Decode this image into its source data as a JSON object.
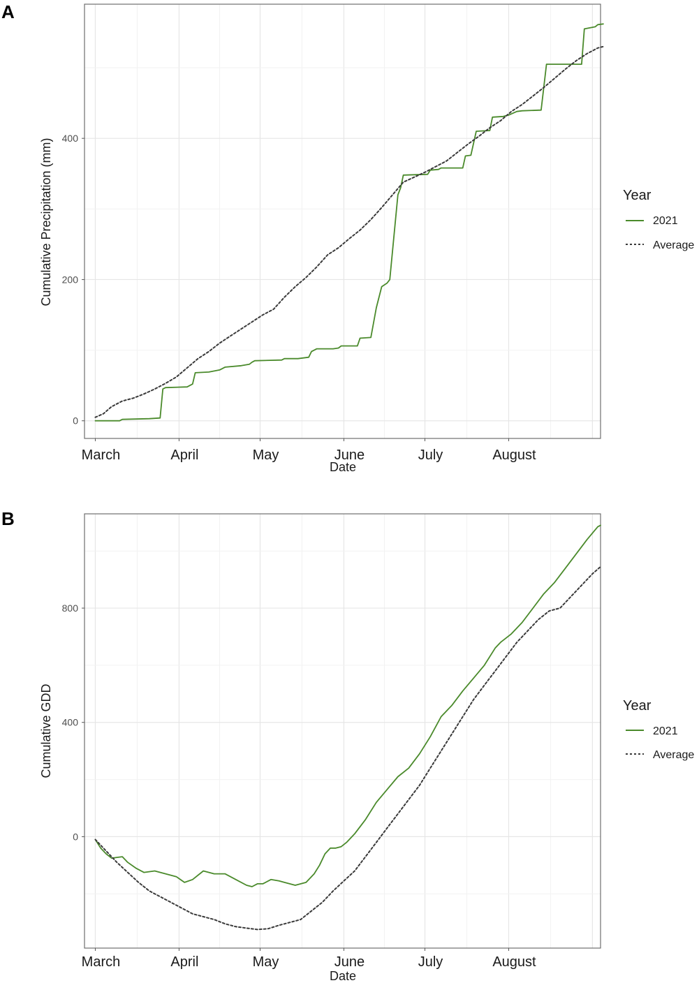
{
  "chart_data": [
    {
      "panel": "A",
      "type": "line",
      "xlabel": "Date",
      "ylabel": "Cumulative Precipitation (mm)",
      "x_unit": "day of year",
      "xlim": [
        56,
        247
      ],
      "ylim": [
        -25,
        590
      ],
      "x_ticks": [
        {
          "label": "March",
          "x": 60
        },
        {
          "label": "April",
          "x": 91
        },
        {
          "label": "May",
          "x": 121
        },
        {
          "label": "June",
          "x": 152
        },
        {
          "label": "July",
          "x": 182
        },
        {
          "label": "August",
          "x": 213
        }
      ],
      "y_ticks": [
        0,
        200,
        400
      ],
      "legend": {
        "title": "Year",
        "position": "right",
        "entries": [
          "2021",
          "Average"
        ]
      },
      "series": [
        {
          "name": "2021",
          "color": "#4a8a2b",
          "dash": "solid",
          "points": [
            [
              60,
              0
            ],
            [
              61,
              0
            ],
            [
              69,
              0
            ],
            [
              70,
              2
            ],
            [
              80,
              3
            ],
            [
              84,
              4
            ],
            [
              85,
              45
            ],
            [
              86,
              47
            ],
            [
              94,
              48
            ],
            [
              96,
              52
            ],
            [
              97,
              68
            ],
            [
              102,
              69
            ],
            [
              106,
              72
            ],
            [
              108,
              76
            ],
            [
              114,
              78
            ],
            [
              117,
              80
            ],
            [
              118,
              83
            ],
            [
              119,
              85
            ],
            [
              129,
              86
            ],
            [
              130,
              88
            ],
            [
              135,
              88
            ],
            [
              139,
              90
            ],
            [
              140,
              98
            ],
            [
              142,
              102
            ],
            [
              148,
              102
            ],
            [
              150,
              103
            ],
            [
              151,
              106
            ],
            [
              157,
              106
            ],
            [
              158,
              117
            ],
            [
              162,
              118
            ],
            [
              164,
              160
            ],
            [
              166,
              190
            ],
            [
              168,
              195
            ],
            [
              169,
              200
            ],
            [
              172,
              320
            ],
            [
              173,
              330
            ],
            [
              174,
              348
            ],
            [
              183,
              349
            ],
            [
              184,
              355
            ],
            [
              187,
              356
            ],
            [
              188,
              358
            ],
            [
              196,
              358
            ],
            [
              197,
              375
            ],
            [
              199,
              376
            ],
            [
              201,
              410
            ],
            [
              206,
              411
            ],
            [
              207,
              430
            ],
            [
              211,
              431
            ],
            [
              213,
              433
            ],
            [
              216,
              438
            ],
            [
              218,
              439
            ],
            [
              225,
              440
            ],
            [
              227,
              505
            ],
            [
              240,
              505
            ],
            [
              241,
              555
            ],
            [
              245,
              558
            ],
            [
              246,
              561
            ],
            [
              248,
              562
            ]
          ]
        },
        {
          "name": "Average",
          "color": "#3a3a3a",
          "dash": "dotted",
          "points": [
            [
              60,
              5
            ],
            [
              63,
              10
            ],
            [
              66,
              20
            ],
            [
              70,
              28
            ],
            [
              74,
              32
            ],
            [
              78,
              38
            ],
            [
              82,
              45
            ],
            [
              86,
              53
            ],
            [
              90,
              62
            ],
            [
              94,
              75
            ],
            [
              98,
              88
            ],
            [
              102,
              98
            ],
            [
              106,
              110
            ],
            [
              110,
              120
            ],
            [
              114,
              130
            ],
            [
              118,
              140
            ],
            [
              122,
              150
            ],
            [
              126,
              158
            ],
            [
              130,
              175
            ],
            [
              134,
              190
            ],
            [
              138,
              203
            ],
            [
              142,
              218
            ],
            [
              146,
              235
            ],
            [
              150,
              245
            ],
            [
              154,
              258
            ],
            [
              158,
              270
            ],
            [
              162,
              285
            ],
            [
              166,
              302
            ],
            [
              170,
              320
            ],
            [
              174,
              338
            ],
            [
              178,
              345
            ],
            [
              182,
              352
            ],
            [
              186,
              360
            ],
            [
              190,
              368
            ],
            [
              194,
              380
            ],
            [
              198,
              392
            ],
            [
              202,
              403
            ],
            [
              206,
              415
            ],
            [
              210,
              425
            ],
            [
              214,
              438
            ],
            [
              218,
              448
            ],
            [
              222,
              460
            ],
            [
              226,
              472
            ],
            [
              230,
              485
            ],
            [
              234,
              498
            ],
            [
              238,
              510
            ],
            [
              242,
              520
            ],
            [
              246,
              528
            ],
            [
              248,
              530
            ]
          ]
        }
      ]
    },
    {
      "panel": "B",
      "type": "line",
      "xlabel": "Date",
      "ylabel": "Cumulative GDD",
      "x_unit": "day of year",
      "xlim": [
        56,
        247
      ],
      "ylim": [
        -390,
        1130
      ],
      "x_ticks": [
        {
          "label": "March",
          "x": 60
        },
        {
          "label": "April",
          "x": 91
        },
        {
          "label": "May",
          "x": 121
        },
        {
          "label": "June",
          "x": 152
        },
        {
          "label": "July",
          "x": 182
        },
        {
          "label": "August",
          "x": 213
        }
      ],
      "y_ticks": [
        0,
        400,
        800
      ],
      "legend": {
        "title": "Year",
        "position": "right",
        "entries": [
          "2021",
          "Average"
        ]
      },
      "series": [
        {
          "name": "2021",
          "color": "#4a8a2b",
          "dash": "solid",
          "points": [
            [
              60,
              -10
            ],
            [
              62,
              -40
            ],
            [
              64,
              -60
            ],
            [
              66,
              -75
            ],
            [
              70,
              -70
            ],
            [
              72,
              -90
            ],
            [
              75,
              -110
            ],
            [
              78,
              -125
            ],
            [
              82,
              -120
            ],
            [
              86,
              -130
            ],
            [
              90,
              -140
            ],
            [
              93,
              -160
            ],
            [
              96,
              -150
            ],
            [
              100,
              -120
            ],
            [
              104,
              -130
            ],
            [
              108,
              -130
            ],
            [
              112,
              -150
            ],
            [
              116,
              -170
            ],
            [
              118,
              -175
            ],
            [
              120,
              -165
            ],
            [
              122,
              -165
            ],
            [
              125,
              -150
            ],
            [
              128,
              -155
            ],
            [
              130,
              -160
            ],
            [
              134,
              -170
            ],
            [
              138,
              -160
            ],
            [
              141,
              -130
            ],
            [
              143,
              -100
            ],
            [
              145,
              -60
            ],
            [
              147,
              -40
            ],
            [
              149,
              -40
            ],
            [
              151,
              -35
            ],
            [
              153,
              -20
            ],
            [
              156,
              10
            ],
            [
              160,
              60
            ],
            [
              164,
              120
            ],
            [
              168,
              165
            ],
            [
              172,
              210
            ],
            [
              176,
              240
            ],
            [
              180,
              290
            ],
            [
              184,
              350
            ],
            [
              188,
              420
            ],
            [
              192,
              460
            ],
            [
              196,
              510
            ],
            [
              200,
              555
            ],
            [
              204,
              600
            ],
            [
              208,
              660
            ],
            [
              210,
              680
            ],
            [
              214,
              710
            ],
            [
              218,
              750
            ],
            [
              222,
              800
            ],
            [
              226,
              850
            ],
            [
              230,
              890
            ],
            [
              234,
              940
            ],
            [
              238,
              990
            ],
            [
              242,
              1040
            ],
            [
              246,
              1085
            ],
            [
              247,
              1090
            ]
          ]
        },
        {
          "name": "Average",
          "color": "#3a3a3a",
          "dash": "dotted",
          "points": [
            [
              60,
              -10
            ],
            [
              64,
              -50
            ],
            [
              68,
              -90
            ],
            [
              72,
              -125
            ],
            [
              76,
              -160
            ],
            [
              80,
              -190
            ],
            [
              84,
              -210
            ],
            [
              88,
              -230
            ],
            [
              92,
              -250
            ],
            [
              96,
              -270
            ],
            [
              100,
              -280
            ],
            [
              104,
              -290
            ],
            [
              108,
              -305
            ],
            [
              112,
              -315
            ],
            [
              116,
              -320
            ],
            [
              120,
              -325
            ],
            [
              124,
              -322
            ],
            [
              128,
              -310
            ],
            [
              132,
              -300
            ],
            [
              136,
              -290
            ],
            [
              140,
              -260
            ],
            [
              144,
              -230
            ],
            [
              148,
              -190
            ],
            [
              152,
              -155
            ],
            [
              156,
              -120
            ],
            [
              160,
              -70
            ],
            [
              164,
              -20
            ],
            [
              168,
              30
            ],
            [
              172,
              80
            ],
            [
              176,
              130
            ],
            [
              180,
              180
            ],
            [
              184,
              240
            ],
            [
              188,
              300
            ],
            [
              192,
              360
            ],
            [
              196,
              420
            ],
            [
              200,
              480
            ],
            [
              204,
              530
            ],
            [
              208,
              580
            ],
            [
              212,
              630
            ],
            [
              216,
              680
            ],
            [
              220,
              720
            ],
            [
              224,
              760
            ],
            [
              228,
              790
            ],
            [
              232,
              800
            ],
            [
              236,
              840
            ],
            [
              240,
              880
            ],
            [
              244,
              920
            ],
            [
              247,
              945
            ]
          ]
        }
      ]
    }
  ]
}
